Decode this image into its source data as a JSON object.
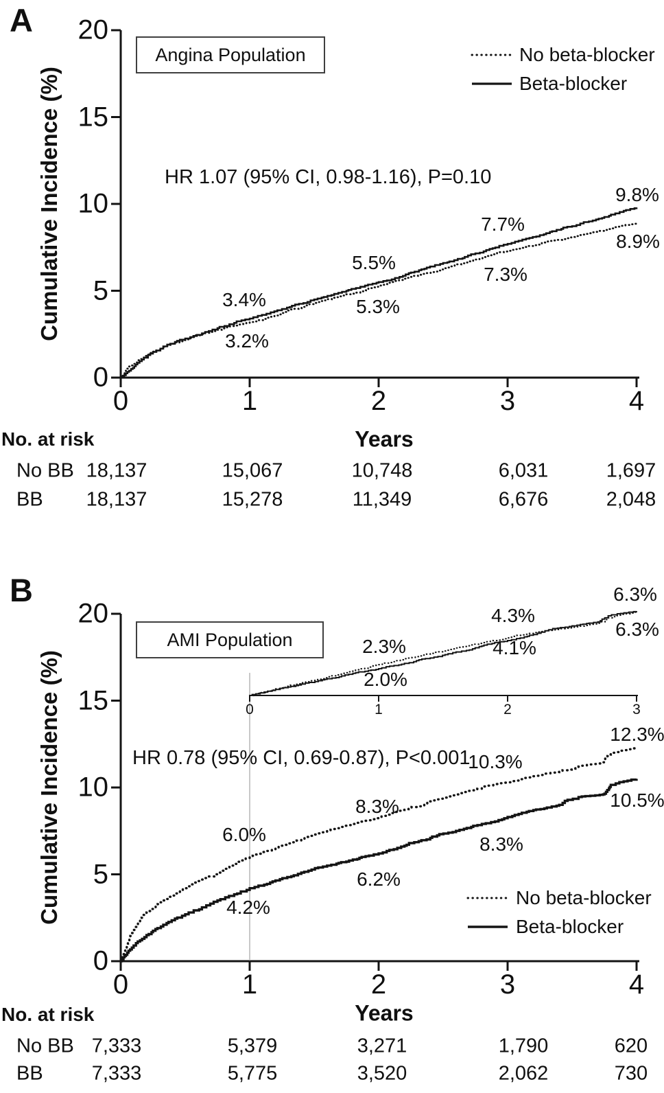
{
  "panelA": {
    "letter": "A",
    "population": "Angina Population",
    "ylabel": "Cumulative Incidence (%)",
    "hr": "HR 1.07 (95% CI, 0.98-1.16), P=0.10",
    "legend": {
      "no_bb": "No beta-blocker",
      "bb": "Beta-blocker"
    },
    "x_ticks": [
      "0",
      "1",
      "2",
      "3",
      "4"
    ],
    "y_ticks": [
      "0",
      "5",
      "10",
      "15",
      "20"
    ],
    "curve_labels": {
      "bb": [
        "3.4%",
        "5.5%",
        "7.7%",
        "9.8%"
      ],
      "no_bb": [
        "3.2%",
        "5.3%",
        "7.3%",
        "8.9%"
      ]
    },
    "risk_table": {
      "header": "No. at risk",
      "xlabel": "Years",
      "rows": [
        {
          "label": "No BB",
          "values": [
            "18,137",
            "15,067",
            "10,748",
            "6,031",
            "1,697"
          ]
        },
        {
          "label": "BB",
          "values": [
            "18,137",
            "15,278",
            "11,349",
            "6,676",
            "2,048"
          ]
        }
      ]
    }
  },
  "panelB": {
    "letter": "B",
    "population": "AMI Population",
    "ylabel": "Cumulative Incidence (%)",
    "hr": "HR 0.78 (95% CI, 0.69-0.87), P<0.001",
    "legend": {
      "no_bb": "No beta-blocker",
      "bb": "Beta-blocker"
    },
    "x_ticks": [
      "0",
      "1",
      "2",
      "3",
      "4"
    ],
    "y_ticks": [
      "0",
      "5",
      "10",
      "15",
      "20"
    ],
    "curve_labels": {
      "no_bb": [
        "6.0%",
        "8.3%",
        "10.3%",
        "12.3%"
      ],
      "bb": [
        "4.2%",
        "6.2%",
        "8.3%",
        "10.5%"
      ]
    },
    "inset": {
      "x_ticks": [
        "0",
        "1",
        "2",
        "3"
      ],
      "curve_labels": {
        "no_bb": [
          "2.3%",
          "4.3%",
          "6.3%"
        ],
        "bb": [
          "2.0%",
          "4.1%",
          "6.3%"
        ]
      }
    },
    "risk_table": {
      "header": "No. at risk",
      "xlabel": "Years",
      "rows": [
        {
          "label": "No BB",
          "values": [
            "7,333",
            "5,379",
            "3,271",
            "1,790",
            "620"
          ]
        },
        {
          "label": "BB",
          "values": [
            "7,333",
            "5,775",
            "3,520",
            "2,062",
            "730"
          ]
        }
      ]
    }
  },
  "chart_data": [
    {
      "id": "A",
      "type": "line",
      "title": "Angina Population",
      "xlabel": "Years",
      "ylabel": "Cumulative Incidence (%)",
      "xlim": [
        0,
        4
      ],
      "ylim": [
        0,
        20
      ],
      "x_ticks": [
        0,
        1,
        2,
        3,
        4
      ],
      "y_ticks": [
        0,
        5,
        10,
        15,
        20
      ],
      "annotation": "HR 1.07 (95% CI, 0.98-1.16), P=0.10",
      "legend_position": "top-right",
      "grid": false,
      "series": [
        {
          "name": "No beta-blocker",
          "line_style": "dotted",
          "x": [
            0,
            0.04,
            0.08,
            0.13,
            0.18,
            0.25,
            0.33,
            0.42,
            0.5,
            0.63,
            0.75,
            0.88,
            1,
            1.13,
            1.25,
            1.5,
            1.75,
            2,
            2.25,
            2.5,
            2.75,
            3,
            3.25,
            3.5,
            3.75,
            4
          ],
          "y": [
            0,
            0.4,
            0.7,
            1.0,
            1.25,
            1.5,
            1.78,
            2.02,
            2.2,
            2.5,
            2.75,
            3.0,
            3.2,
            3.45,
            3.72,
            4.3,
            4.8,
            5.3,
            5.8,
            6.3,
            6.8,
            7.3,
            7.72,
            8.1,
            8.5,
            8.9
          ],
          "labeled_points": {
            "1": 3.2,
            "2": 5.3,
            "3": 7.3,
            "4": 8.9
          },
          "at_risk": [
            18137,
            15067,
            10748,
            6031,
            1697
          ]
        },
        {
          "name": "Beta-blocker",
          "line_style": "solid",
          "x": [
            0,
            0.04,
            0.08,
            0.13,
            0.18,
            0.25,
            0.33,
            0.42,
            0.5,
            0.63,
            0.75,
            0.88,
            1,
            1.13,
            1.25,
            1.5,
            1.75,
            2,
            2.25,
            2.5,
            2.75,
            3,
            3.25,
            3.5,
            3.75,
            4
          ],
          "y": [
            0,
            0.25,
            0.5,
            0.85,
            1.15,
            1.48,
            1.8,
            2.05,
            2.25,
            2.55,
            2.85,
            3.15,
            3.4,
            3.68,
            3.95,
            4.5,
            5.0,
            5.5,
            6.05,
            6.6,
            7.15,
            7.7,
            8.2,
            8.72,
            9.25,
            9.8
          ],
          "labeled_points": {
            "1": 3.4,
            "2": 5.5,
            "3": 7.7,
            "4": 9.8
          },
          "at_risk": [
            18137,
            15278,
            11349,
            6676,
            2048
          ]
        }
      ]
    },
    {
      "id": "B",
      "type": "line",
      "title": "AMI Population",
      "xlabel": "Years",
      "ylabel": "Cumulative Incidence (%)",
      "xlim": [
        0,
        4
      ],
      "ylim": [
        0,
        20
      ],
      "x_ticks": [
        0,
        1,
        2,
        3,
        4
      ],
      "y_ticks": [
        0,
        5,
        10,
        15,
        20
      ],
      "annotation": "HR 0.78 (95% CI, 0.69-0.87), P<0.001",
      "legend_position": "bottom-right",
      "grid": false,
      "landmark_line_x": 1,
      "series": [
        {
          "name": "No beta-blocker",
          "line_style": "dotted",
          "x": [
            0,
            0.03,
            0.06,
            0.1,
            0.15,
            0.2,
            0.25,
            0.33,
            0.42,
            0.5,
            0.63,
            0.75,
            0.88,
            1,
            1.2,
            1.4,
            1.6,
            1.8,
            2,
            2.2,
            2.4,
            2.6,
            2.8,
            3,
            3.2,
            3.4,
            3.55,
            3.68,
            3.74,
            3.8,
            3.9,
            4
          ],
          "y": [
            0,
            0.6,
            1.2,
            1.8,
            2.4,
            2.8,
            3.1,
            3.5,
            3.9,
            4.2,
            4.7,
            5.1,
            5.6,
            6.0,
            6.5,
            7.0,
            7.5,
            7.9,
            8.3,
            8.75,
            9.2,
            9.6,
            10.0,
            10.3,
            10.65,
            10.95,
            11.2,
            11.35,
            11.45,
            12.0,
            12.15,
            12.3
          ],
          "labeled_points": {
            "1": 6.0,
            "2": 8.3,
            "3": 10.3,
            "4": 12.3
          },
          "at_risk": [
            7333,
            5379,
            3271,
            1790,
            620
          ]
        },
        {
          "name": "Beta-blocker",
          "line_style": "solid",
          "x": [
            0,
            0.03,
            0.06,
            0.1,
            0.15,
            0.2,
            0.25,
            0.33,
            0.42,
            0.5,
            0.63,
            0.75,
            0.88,
            1,
            1.2,
            1.4,
            1.6,
            1.8,
            2,
            2.2,
            2.4,
            2.6,
            2.8,
            3,
            3.2,
            3.4,
            3.55,
            3.68,
            3.74,
            3.8,
            3.9,
            4
          ],
          "y": [
            0,
            0.3,
            0.6,
            0.9,
            1.2,
            1.5,
            1.75,
            2.1,
            2.45,
            2.7,
            3.1,
            3.5,
            3.85,
            4.2,
            4.65,
            5.1,
            5.5,
            5.85,
            6.2,
            6.65,
            7.1,
            7.5,
            7.9,
            8.3,
            8.7,
            9.0,
            9.45,
            9.55,
            9.6,
            10.15,
            10.35,
            10.5
          ],
          "labeled_points": {
            "1": 4.2,
            "2": 6.2,
            "3": 8.3,
            "4": 10.5
          },
          "at_risk": [
            7333,
            5775,
            3520,
            2062,
            730
          ]
        }
      ]
    },
    {
      "id": "B_inset",
      "type": "line",
      "xlim": [
        0,
        3
      ],
      "ylim": [
        0,
        7
      ],
      "x_ticks": [
        0,
        1,
        2,
        3
      ],
      "grid": false,
      "series": [
        {
          "name": "No beta-blocker",
          "line_style": "dotted",
          "x": [
            0,
            0.2,
            0.4,
            0.6,
            0.8,
            1,
            1.2,
            1.4,
            1.6,
            1.8,
            2,
            2.2,
            2.35,
            2.5,
            2.7,
            2.78,
            2.85,
            3
          ],
          "y": [
            0,
            0.5,
            0.95,
            1.4,
            1.85,
            2.3,
            2.75,
            3.15,
            3.55,
            3.95,
            4.3,
            4.7,
            4.9,
            5.1,
            5.4,
            5.8,
            6.0,
            6.3
          ],
          "labeled_points": {
            "1": 2.3,
            "2": 4.3,
            "3": 6.3
          }
        },
        {
          "name": "Beta-blocker",
          "line_style": "solid",
          "x": [
            0,
            0.2,
            0.4,
            0.6,
            0.8,
            1,
            1.2,
            1.4,
            1.6,
            1.8,
            2,
            2.2,
            2.35,
            2.5,
            2.7,
            2.78,
            2.85,
            3
          ],
          "y": [
            0,
            0.45,
            0.85,
            1.25,
            1.65,
            2.0,
            2.4,
            2.8,
            3.25,
            3.7,
            4.1,
            4.55,
            5.0,
            5.2,
            5.5,
            5.95,
            6.1,
            6.3
          ],
          "labeled_points": {
            "1": 2.0,
            "2": 4.1,
            "3": 6.3
          }
        }
      ]
    }
  ]
}
